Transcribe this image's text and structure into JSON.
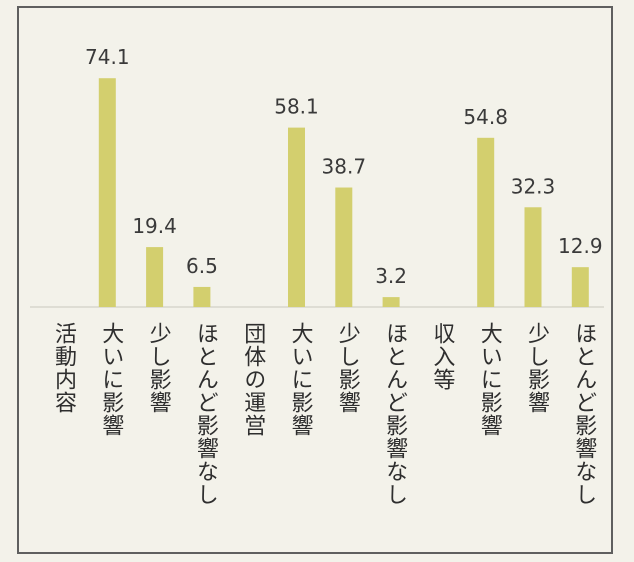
{
  "chart_data": {
    "type": "bar",
    "groups": [
      {
        "label": "活動内容",
        "bars": [
          {
            "label": "大いに影響",
            "value": 74.1
          },
          {
            "label": "少し影響",
            "value": 19.4
          },
          {
            "label": "ほとんど影響なし",
            "value": 6.5
          }
        ]
      },
      {
        "label": "団体の運営",
        "bars": [
          {
            "label": "大いに影響",
            "value": 58.1
          },
          {
            "label": "少し影響",
            "value": 38.7
          },
          {
            "label": "ほとんど影響なし",
            "value": 3.2
          }
        ]
      },
      {
        "label": "収入等",
        "bars": [
          {
            "label": "大いに影響",
            "value": 54.8
          },
          {
            "label": "少し影響",
            "value": 32.3
          },
          {
            "label": "ほとんど影響なし",
            "value": 12.9
          }
        ]
      }
    ],
    "ylim": [
      0,
      80
    ],
    "grid": false,
    "legend": "none",
    "bar_color": "#d3cf6e"
  }
}
